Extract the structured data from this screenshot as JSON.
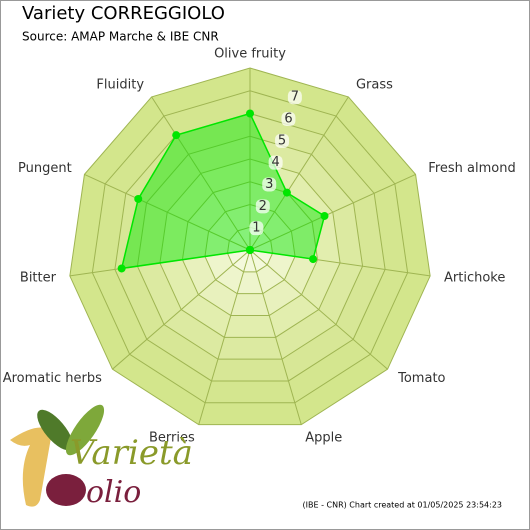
{
  "chart_data": {
    "type": "radar",
    "title": "Variety CORREGGIOLO",
    "subtitle": "Source: AMAP Marche & IBE CNR",
    "categories": [
      "Olive fruity",
      "Grass",
      "Fresh almond",
      "Artichoke",
      "Tomato",
      "Apple",
      "Berries",
      "Aromatic herbs",
      "Bitter",
      "Pungent",
      "Fluidity"
    ],
    "values": [
      6,
      3,
      3.6,
      2.8,
      0,
      0,
      0,
      0,
      5.7,
      5.4,
      6
    ],
    "color": "#00e600",
    "rlim": [
      0,
      8
    ],
    "rticks": [
      1,
      2,
      3,
      4,
      5,
      6,
      7
    ],
    "credit": "(IBE - CNR) Chart created at 01/05/2025 23:54:23",
    "logo": {
      "word1": "Varietà",
      "word2": "olio"
    }
  }
}
